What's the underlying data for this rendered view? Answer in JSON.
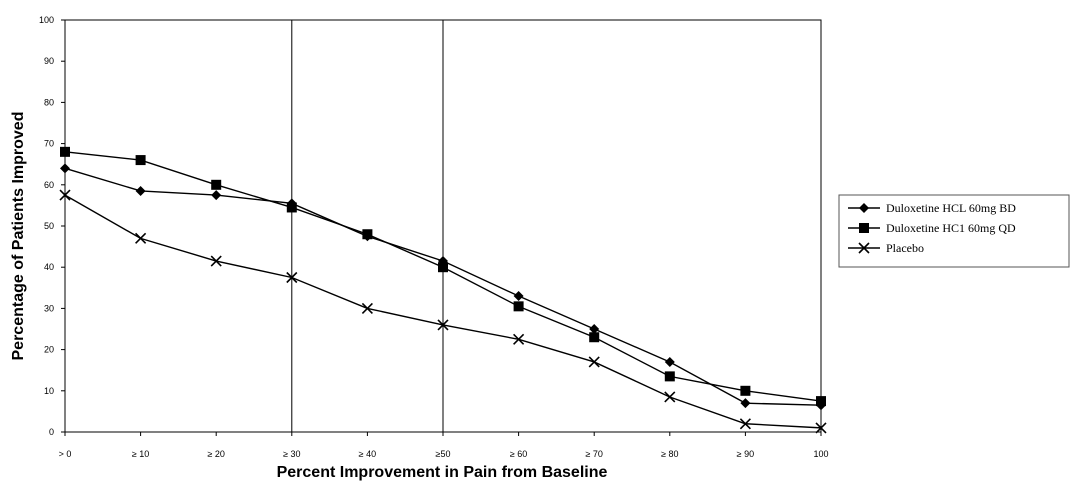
{
  "chart_data": {
    "type": "line",
    "title": "",
    "xlabel": "Percent Improvement in Pain from Baseline",
    "ylabel": "Percentage of Patients Improved",
    "categories": [
      "> 0",
      "≥ 10",
      "≥ 20",
      "≥ 30",
      "≥ 40",
      "≥50",
      "≥ 60",
      "≥ 70",
      "≥ 80",
      "≥ 90",
      "100"
    ],
    "ylim": [
      0,
      100
    ],
    "yticks": [
      "0",
      "10",
      "20",
      "30",
      "40",
      "50",
      "60",
      "70",
      "80",
      "90",
      "100"
    ],
    "grid": false,
    "reference_lines_at": [
      "≥ 30",
      "≥50"
    ],
    "legend_position": "right",
    "series": [
      {
        "name": "Duloxetine HCL 60mg BD",
        "marker": "diamond",
        "values": [
          64,
          58.5,
          57.5,
          55.5,
          47.5,
          41.5,
          33,
          25,
          17,
          7,
          6.5
        ]
      },
      {
        "name": "Duloxetine HC1 60mg QD",
        "marker": "square",
        "values": [
          68,
          66,
          60,
          54.5,
          48,
          40,
          30.5,
          23,
          13.5,
          10,
          7.5
        ]
      },
      {
        "name": "Placebo",
        "marker": "x",
        "values": [
          57.5,
          47,
          41.5,
          37.5,
          30,
          26,
          22.5,
          17,
          8.5,
          2,
          1
        ]
      }
    ]
  }
}
